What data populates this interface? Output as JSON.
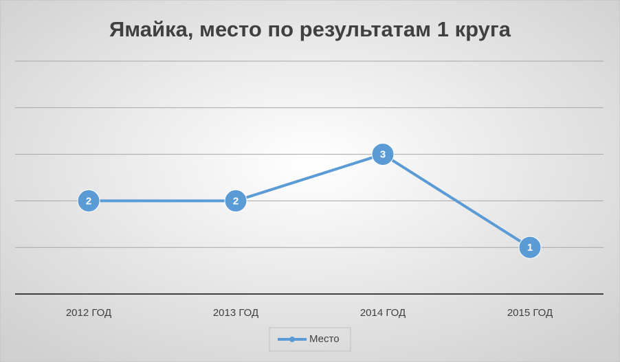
{
  "chart_data": {
    "type": "line",
    "title": "Ямайка, место по результатам 1 круга",
    "categories": [
      "2012 ГОД",
      "2013 ГОД",
      "2014 ГОД",
      "2015 ГОД"
    ],
    "series": [
      {
        "name": "Место",
        "color": "#5b9bd5",
        "values": [
          2,
          2,
          3,
          1
        ]
      }
    ],
    "ylim": [
      0,
      5
    ],
    "yticks": [
      0,
      1,
      2,
      3,
      4,
      5
    ],
    "grid": true,
    "legend": "bottom"
  }
}
